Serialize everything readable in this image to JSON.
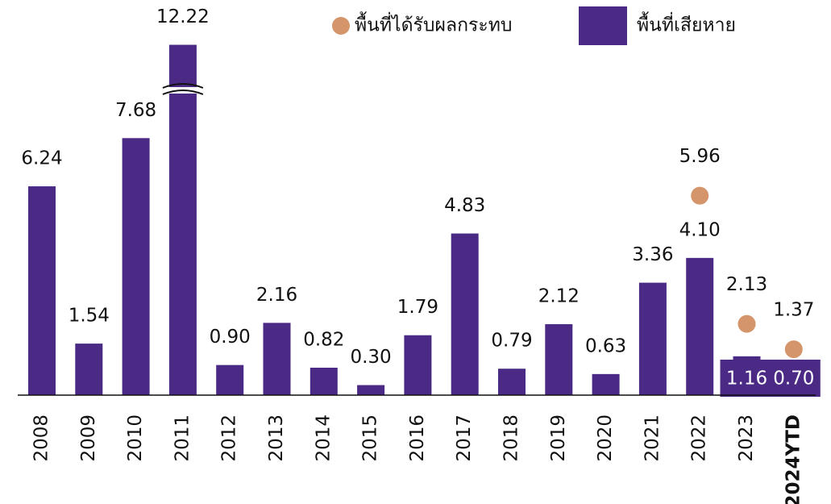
{
  "chart_data": {
    "type": "bar",
    "categories": [
      "2008",
      "2009",
      "2010",
      "2011",
      "2012",
      "2013",
      "2014",
      "2015",
      "2016",
      "2017",
      "2018",
      "2019",
      "2020",
      "2021",
      "2022",
      "2023",
      "2024YTD"
    ],
    "series": [
      {
        "name": "พื้นที่เสียหาย",
        "color": "#4b2a85",
        "kind": "bar",
        "values": [
          6.24,
          1.54,
          7.68,
          12.22,
          0.9,
          2.16,
          0.82,
          0.3,
          1.79,
          4.83,
          0.79,
          2.12,
          0.63,
          3.36,
          4.1,
          1.16,
          0.7
        ],
        "value_labels": [
          "6.24",
          "1.54",
          "7.68",
          "12.22",
          "0.90",
          "2.16",
          "0.82",
          "0.30",
          "1.79",
          "4.83",
          "0.79",
          "2.12",
          "0.63",
          "3.36",
          "4.10",
          "1.16",
          "0.70"
        ]
      },
      {
        "name": "พื้นที่ได้รับผลกระทบ",
        "color": "#d4956a",
        "kind": "dot",
        "values": [
          null,
          null,
          null,
          null,
          null,
          null,
          null,
          null,
          null,
          null,
          null,
          null,
          null,
          null,
          5.96,
          2.13,
          1.37
        ],
        "value_labels": [
          null,
          null,
          null,
          null,
          null,
          null,
          null,
          null,
          null,
          null,
          null,
          null,
          null,
          null,
          "5.96",
          "2.13",
          "1.37"
        ]
      }
    ]
  }
}
